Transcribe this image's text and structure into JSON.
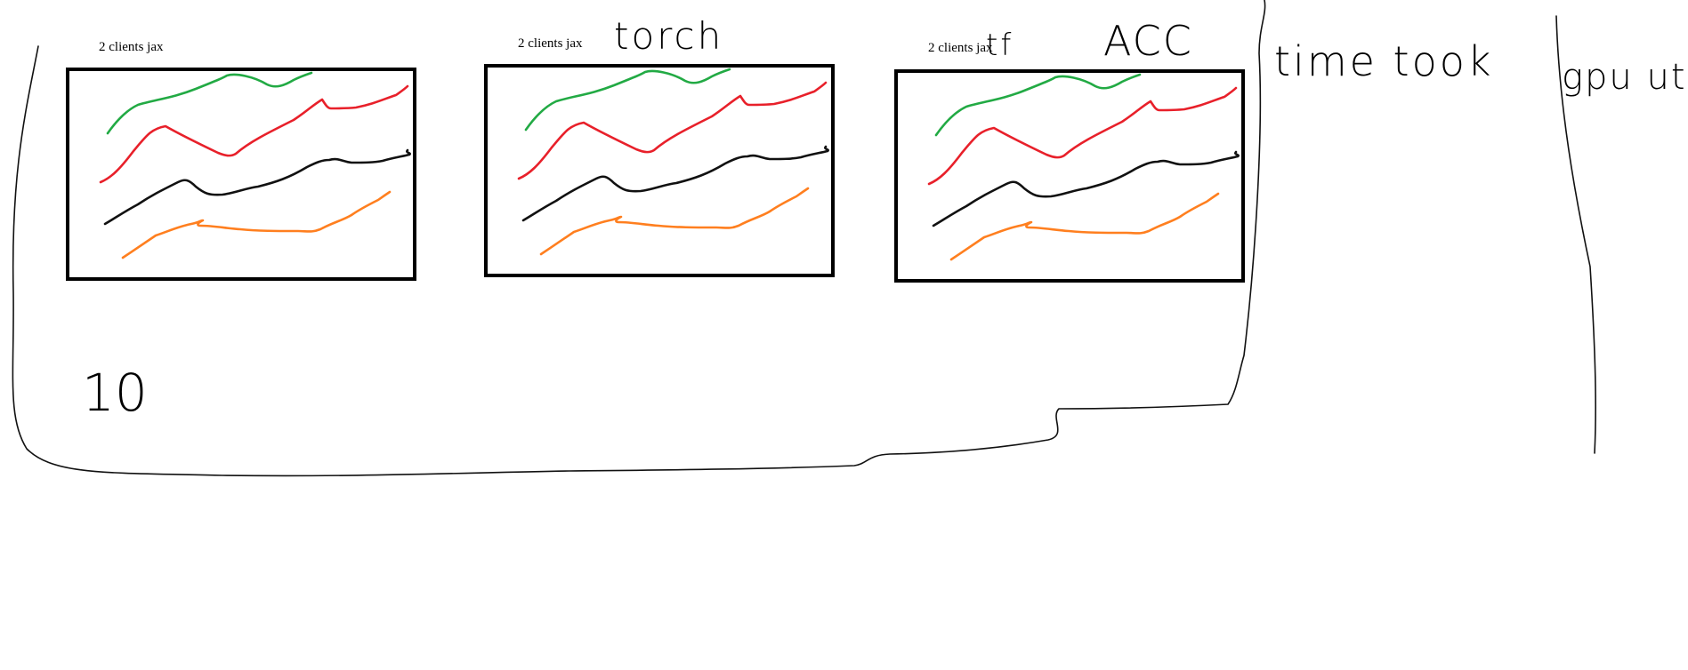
{
  "colors": {
    "green": "#22aa44",
    "red": "#e8202a",
    "black": "#111111",
    "orange": "#ff7f1f",
    "ink": "#000000"
  },
  "panels": [
    {
      "label": "2 clients jax",
      "annotation": ""
    },
    {
      "label": "2 clients jax",
      "annotation": "torch"
    },
    {
      "label": "2 clients jax",
      "annotation": "tf"
    }
  ],
  "annotations": {
    "acc": "ACC",
    "time_took": "time took",
    "gpu_util": "gpu util",
    "clients_count": "10"
  },
  "series_order": [
    "green",
    "red",
    "black",
    "orange"
  ]
}
